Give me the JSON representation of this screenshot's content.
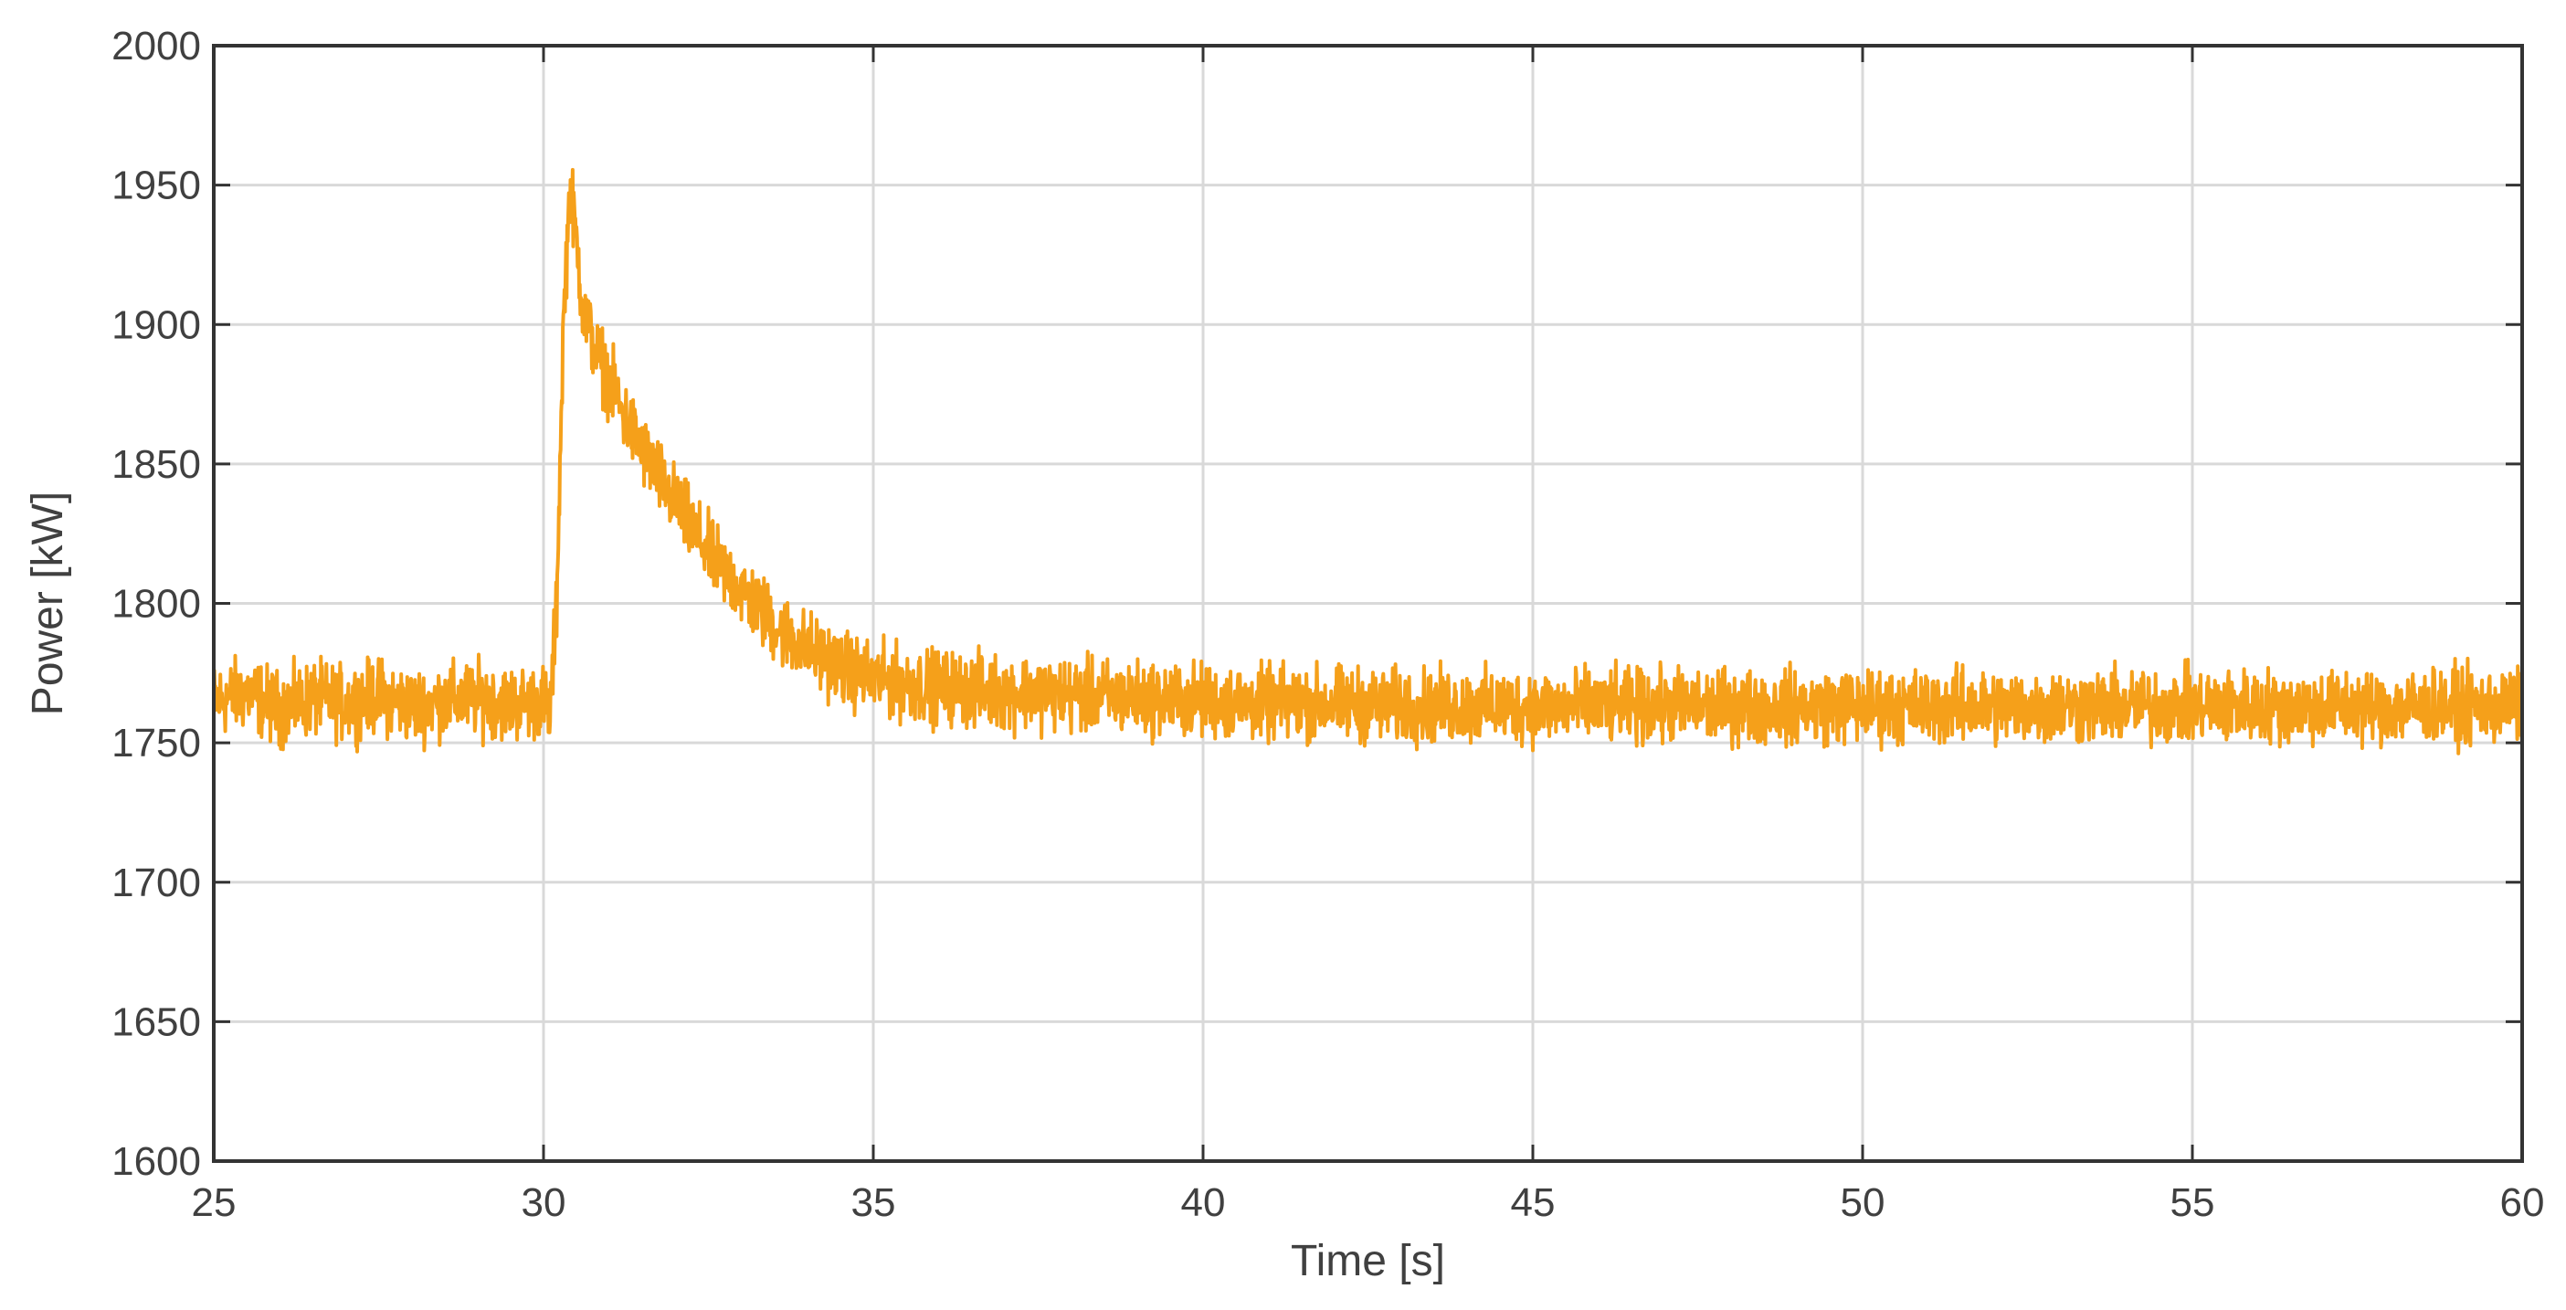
{
  "chart_data": {
    "type": "line",
    "title": "",
    "xlabel": "Time [s]",
    "ylabel": "Power [kW]",
    "xlim": [
      25,
      60
    ],
    "ylim": [
      1600,
      2000
    ],
    "x_ticks": [
      25,
      30,
      35,
      40,
      45,
      50,
      55,
      60
    ],
    "y_ticks": [
      1600,
      1650,
      1700,
      1750,
      1800,
      1850,
      1900,
      1950,
      2000
    ],
    "x_tick_labels": [
      "25",
      "30",
      "35",
      "40",
      "45",
      "50",
      "55",
      "60"
    ],
    "y_tick_labels": [
      "1600",
      "1650",
      "1700",
      "1750",
      "1800",
      "1850",
      "1900",
      "1950",
      "2000"
    ],
    "grid": true,
    "legend": "none",
    "series": [
      {
        "color": "#F5A01A",
        "x": [
          25,
          25.5,
          26,
          26.5,
          27,
          27.5,
          28,
          28.5,
          29,
          29.5,
          30,
          30.1,
          30.2,
          30.3,
          30.4,
          30.5,
          30.6,
          30.8,
          31,
          31.2,
          31.5,
          31.8,
          32,
          32.3,
          32.6,
          33,
          33.3,
          33.6,
          34,
          34.3,
          34.6,
          35,
          35.5,
          36,
          36.5,
          37,
          37.5,
          38,
          39,
          40,
          41,
          42,
          43,
          44,
          45,
          46,
          47,
          48,
          49,
          50,
          51,
          52,
          53,
          54,
          55,
          56,
          57,
          58,
          59,
          60
        ],
        "y": [
          1765,
          1768,
          1762,
          1766,
          1764,
          1767,
          1763,
          1765,
          1766,
          1764,
          1765,
          1760,
          1800,
          1900,
          1950,
          1930,
          1905,
          1890,
          1880,
          1868,
          1855,
          1843,
          1836,
          1825,
          1815,
          1805,
          1797,
          1790,
          1784,
          1780,
          1776,
          1773,
          1771,
          1770,
          1769,
          1768,
          1768,
          1767,
          1766,
          1765,
          1764,
          1764,
          1763,
          1763,
          1763,
          1763,
          1763,
          1763,
          1763,
          1763,
          1763,
          1763,
          1763,
          1763,
          1763,
          1763,
          1763,
          1763,
          1763,
          1763
        ],
        "noise_amplitude": 12
      }
    ]
  }
}
